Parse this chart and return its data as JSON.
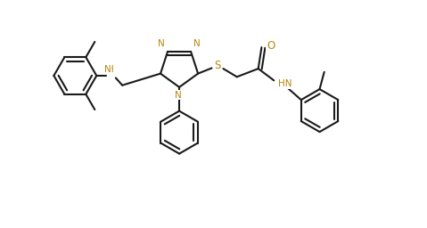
{
  "bg_color": "#ffffff",
  "line_color": "#1a1a1a",
  "hetero_color": "#b8860b",
  "lw": 1.5,
  "figsize": [
    4.79,
    2.56
  ],
  "dpi": 100,
  "xlim": [
    -8.5,
    7.0
  ],
  "ylim": [
    -4.0,
    4.2
  ]
}
